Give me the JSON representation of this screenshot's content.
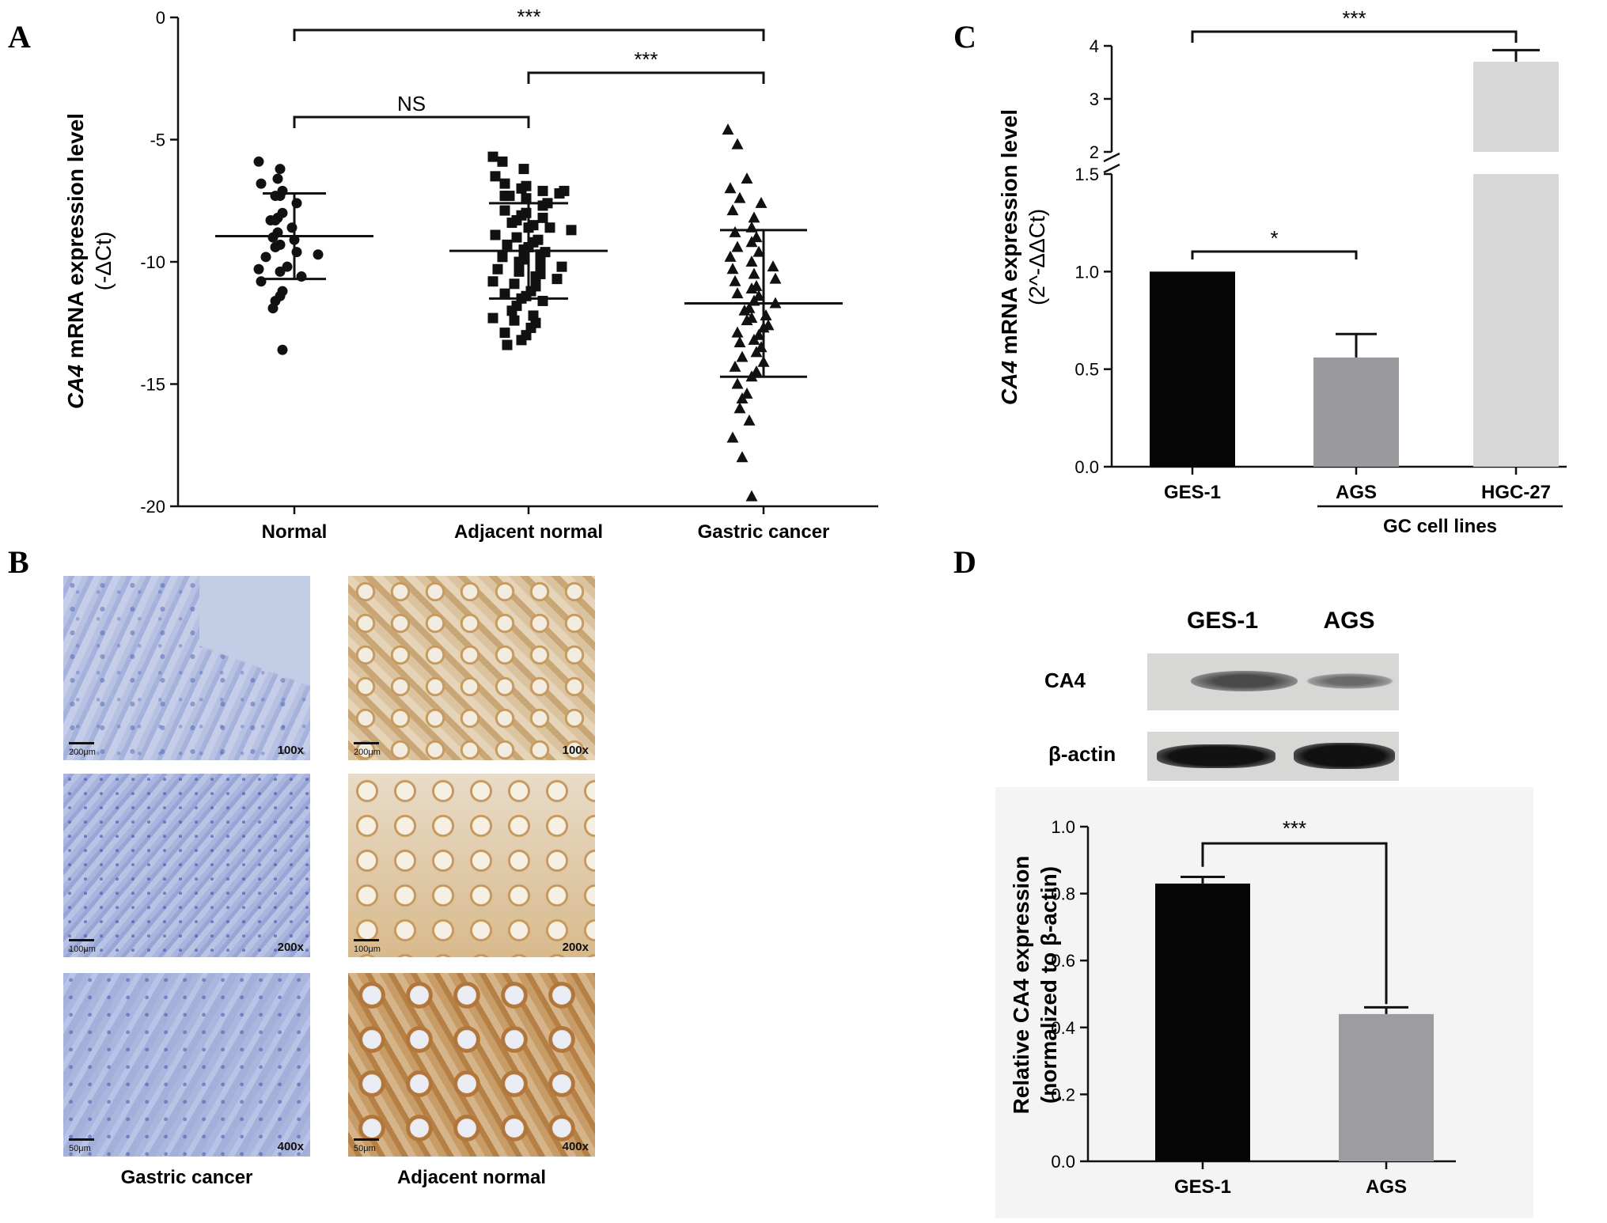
{
  "panels": {
    "A": "A",
    "B": "B",
    "C": "C",
    "D": "D"
  },
  "colors": {
    "ink": "#111111",
    "ges1_bar": "#050505",
    "ags_bar_c": "#9b9b9f",
    "hgc27_bar": "#d7d7d7",
    "ags_bar_d": "#9d9da1"
  },
  "panel_b": {
    "captions": [
      "Gastric cancer",
      "Adjacent normal"
    ],
    "images": [
      {
        "name": "gastric-cancer-100x",
        "magnification": "100x",
        "scale": "200μm"
      },
      {
        "name": "adjacent-normal-100x",
        "magnification": "100x",
        "scale": "200μm"
      },
      {
        "name": "gastric-cancer-200x",
        "magnification": "200x",
        "scale": "100μm"
      },
      {
        "name": "adjacent-normal-200x",
        "magnification": "200x",
        "scale": "100μm"
      },
      {
        "name": "gastric-cancer-400x",
        "magnification": "400x",
        "scale": "50μm"
      },
      {
        "name": "adjacent-normal-400x",
        "magnification": "400x",
        "scale": "50μm"
      }
    ]
  },
  "blot": {
    "lanes": [
      "GES-1",
      "AGS"
    ],
    "rows": [
      "CA4",
      "β-actin"
    ]
  },
  "chart_data": [
    {
      "panel": "A",
      "type": "scatter",
      "ylabel_italic": "CA4",
      "ylabel_rest": " mRNA expression level",
      "ylabel_line2": "(-ΔCt)",
      "ylim": [
        -20,
        0
      ],
      "yticks": [
        0,
        -5,
        -10,
        -15,
        -20
      ],
      "ytick_labels": [
        "0",
        "-5",
        "-10",
        "-15",
        "-20"
      ],
      "categories": [
        "Normal",
        "Adjacent normal",
        "Gastric cancer"
      ],
      "markers": [
        "circle",
        "square",
        "triangle"
      ],
      "series": [
        {
          "mean": -8.95,
          "sd": 1.75,
          "values": [
            -5.9,
            -6.2,
            -6.6,
            -6.8,
            -7.1,
            -7.3,
            -7.3,
            -7.6,
            -8.0,
            -8.2,
            -8.3,
            -8.3,
            -8.6,
            -8.8,
            -9.0,
            -9.1,
            -9.3,
            -9.4,
            -9.6,
            -9.7,
            -9.8,
            -10.2,
            -10.3,
            -10.4,
            -10.6,
            -10.8,
            -11.2,
            -11.4,
            -11.6,
            -11.9,
            -13.6
          ]
        },
        {
          "mean": -9.55,
          "sd": 1.95,
          "values": [
            -5.7,
            -5.9,
            -6.2,
            -6.5,
            -6.8,
            -6.9,
            -7.0,
            -7.1,
            -7.1,
            -7.2,
            -7.3,
            -7.3,
            -7.4,
            -7.6,
            -7.7,
            -7.9,
            -8.0,
            -8.1,
            -8.2,
            -8.3,
            -8.4,
            -8.5,
            -8.6,
            -8.6,
            -8.7,
            -8.9,
            -9.0,
            -9.1,
            -9.2,
            -9.3,
            -9.4,
            -9.5,
            -9.6,
            -9.7,
            -9.8,
            -9.9,
            -10.0,
            -10.1,
            -10.2,
            -10.3,
            -10.4,
            -10.5,
            -10.6,
            -10.7,
            -10.8,
            -10.9,
            -11.0,
            -11.2,
            -11.3,
            -11.4,
            -11.5,
            -11.6,
            -11.8,
            -12.0,
            -12.2,
            -12.3,
            -12.4,
            -12.5,
            -12.7,
            -12.9,
            -13.0,
            -13.2,
            -13.4
          ]
        },
        {
          "mean": -11.7,
          "sd": 3.0,
          "values": [
            -4.6,
            -5.2,
            -6.6,
            -7.0,
            -7.4,
            -7.6,
            -7.9,
            -8.2,
            -8.6,
            -8.8,
            -9.0,
            -9.2,
            -9.4,
            -9.6,
            -9.8,
            -10.0,
            -10.2,
            -10.3,
            -10.5,
            -10.7,
            -10.8,
            -11.0,
            -11.1,
            -11.3,
            -11.4,
            -11.6,
            -11.7,
            -11.9,
            -12.0,
            -12.2,
            -12.3,
            -12.4,
            -12.6,
            -12.7,
            -12.9,
            -13.0,
            -13.2,
            -13.3,
            -13.5,
            -13.7,
            -13.9,
            -14.1,
            -14.3,
            -14.5,
            -14.7,
            -15.0,
            -15.4,
            -15.6,
            -16.0,
            -16.5,
            -17.2,
            -18.0,
            -19.6
          ]
        }
      ],
      "significance": [
        {
          "from": "Normal",
          "to": "Adjacent normal",
          "label": "NS"
        },
        {
          "from": "Adjacent normal",
          "to": "Gastric cancer",
          "label": "***"
        },
        {
          "from": "Normal",
          "to": "Gastric cancer",
          "label": "***"
        }
      ]
    },
    {
      "panel": "C",
      "type": "bar",
      "ylabel_italic": "CA4",
      "ylabel_rest": " mRNA expression level",
      "ylabel_line2": "(2^-ΔΔCt)",
      "y_axis_break": {
        "lower": [
          0,
          1.5
        ],
        "upper": [
          2,
          4
        ]
      },
      "yticks_lower": [
        "0.0",
        "0.5",
        "1.0",
        "1.5"
      ],
      "yticks_upper": [
        "2",
        "3",
        "4"
      ],
      "categories": [
        "GES-1",
        "AGS",
        "HGC-27"
      ],
      "group_label": "GC cell lines",
      "values": [
        1.0,
        0.56,
        3.7
      ],
      "errors": [
        0,
        0.12,
        0.22
      ],
      "significance": [
        {
          "from": "GES-1",
          "to": "AGS",
          "label": "*"
        },
        {
          "from": "GES-1",
          "to": "HGC-27",
          "label": "***"
        }
      ]
    },
    {
      "panel": "D",
      "type": "bar",
      "ylabel": "Relative CA4 expression",
      "ylabel_line2": "(normalized to β-actin)",
      "ylim": [
        0,
        1.0
      ],
      "yticks": [
        "0.0",
        "0.2",
        "0.4",
        "0.6",
        "0.8",
        "1.0"
      ],
      "categories": [
        "GES-1",
        "AGS"
      ],
      "values": [
        0.83,
        0.44
      ],
      "errors": [
        0.02,
        0.02
      ],
      "significance": [
        {
          "from": "GES-1",
          "to": "AGS",
          "label": "***"
        }
      ]
    }
  ]
}
